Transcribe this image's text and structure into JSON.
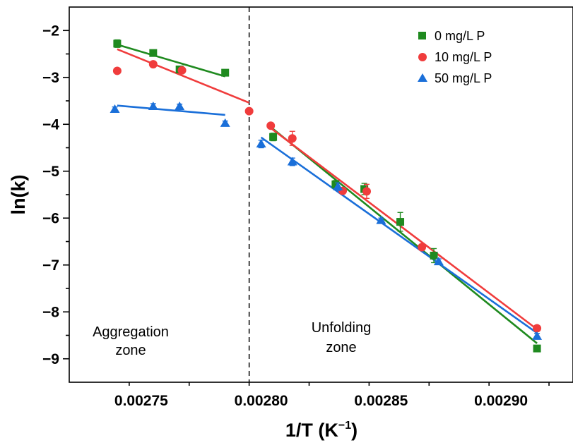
{
  "chart_data": {
    "type": "scatter",
    "title": "",
    "xlabel": "1/T (K",
    "xlabel_sup": "−1",
    "xlabel_close": ")",
    "ylabel": "ln(k)",
    "xlim": [
      0.00272,
      0.00293
    ],
    "ylim": [
      -9.5,
      -1.5
    ],
    "x_ticks": [
      0.00275,
      0.0028,
      0.00285,
      0.0029
    ],
    "x_tick_labels": [
      "0.00275",
      "0.00280",
      "0.00285",
      "0.00290"
    ],
    "y_ticks": [
      -2,
      -3,
      -4,
      -5,
      -6,
      -7,
      -8,
      -9
    ],
    "y_tick_labels": [
      "−2",
      "−3",
      "−4",
      "−5",
      "−6",
      "−7",
      "−8",
      "−9"
    ],
    "divider_x": 0.002795,
    "legend_position": "top-right",
    "annotations": [
      {
        "lines": [
          "Aggregation",
          "zone"
        ],
        "x": 0.00273,
        "y": -8.45
      },
      {
        "lines": [
          "Unfolding",
          "zone"
        ],
        "x": 0.002815,
        "y": -8.45
      }
    ],
    "series": [
      {
        "name": "0 mg/L P",
        "color": "#1f8a1f",
        "marker": "square",
        "points": [
          {
            "x": 0.00274,
            "y": -2.28,
            "err": 0.08
          },
          {
            "x": 0.002755,
            "y": -2.48,
            "err": 0.05
          },
          {
            "x": 0.002766,
            "y": -2.83,
            "err": 0.05
          },
          {
            "x": 0.002785,
            "y": -2.9,
            "err": 0.04
          },
          {
            "x": 0.002805,
            "y": -4.27,
            "err": 0.08
          },
          {
            "x": 0.002831,
            "y": -5.28,
            "err": 0.08
          },
          {
            "x": 0.002843,
            "y": -5.38,
            "err": 0.12
          },
          {
            "x": 0.002858,
            "y": -6.08,
            "err": 0.2
          },
          {
            "x": 0.002872,
            "y": -6.8,
            "err": 0.15
          },
          {
            "x": 0.002915,
            "y": -8.78,
            "err": 0.06
          }
        ],
        "fits": [
          {
            "x": [
              0.00274,
              0.002785
            ],
            "y": [
              -2.3,
              -2.98
            ]
          },
          {
            "x": [
              0.002805,
              0.002915
            ],
            "y": [
              -4.1,
              -8.67
            ]
          }
        ]
      },
      {
        "name": "10 mg/L P",
        "color": "#f03c3c",
        "marker": "circle",
        "points": [
          {
            "x": 0.00274,
            "y": -2.86,
            "err": 0.05
          },
          {
            "x": 0.002755,
            "y": -2.72,
            "err": 0.06
          },
          {
            "x": 0.002767,
            "y": -2.85,
            "err": 0.05
          },
          {
            "x": 0.002795,
            "y": -3.72,
            "err": 0.05
          },
          {
            "x": 0.002804,
            "y": -4.03,
            "err": 0.06
          },
          {
            "x": 0.002813,
            "y": -4.3,
            "err": 0.15
          },
          {
            "x": 0.002834,
            "y": -5.42,
            "err": 0.06
          },
          {
            "x": 0.002844,
            "y": -5.43,
            "err": 0.15
          },
          {
            "x": 0.002867,
            "y": -6.62,
            "err": 0.06
          },
          {
            "x": 0.002915,
            "y": -8.35,
            "err": 0.05
          }
        ],
        "fits": [
          {
            "x": [
              0.00274,
              0.002795
            ],
            "y": [
              -2.4,
              -3.54
            ]
          },
          {
            "x": [
              0.002804,
              0.002915
            ],
            "y": [
              -4.08,
              -8.37
            ]
          }
        ]
      },
      {
        "name": "50 mg/L P",
        "color": "#1a6fd9",
        "marker": "triangle",
        "points": [
          {
            "x": 0.002739,
            "y": -3.68,
            "err": 0.05
          },
          {
            "x": 0.002755,
            "y": -3.62,
            "err": 0.06
          },
          {
            "x": 0.002766,
            "y": -3.62,
            "err": 0.05
          },
          {
            "x": 0.002785,
            "y": -3.98,
            "err": 0.05
          },
          {
            "x": 0.0028,
            "y": -4.42,
            "err": 0.08
          },
          {
            "x": 0.002813,
            "y": -4.8,
            "err": 0.08
          },
          {
            "x": 0.002832,
            "y": -5.33,
            "err": 0.08
          },
          {
            "x": 0.00285,
            "y": -6.05,
            "err": 0.05
          },
          {
            "x": 0.002874,
            "y": -6.93,
            "err": 0.06
          },
          {
            "x": 0.002915,
            "y": -8.52,
            "err": 0.06
          }
        ],
        "fits": [
          {
            "x": [
              0.00274,
              0.002785
            ],
            "y": [
              -3.6,
              -3.8
            ]
          },
          {
            "x": [
              0.0028,
              0.002915
            ],
            "y": [
              -4.28,
              -8.45
            ]
          }
        ]
      }
    ]
  }
}
